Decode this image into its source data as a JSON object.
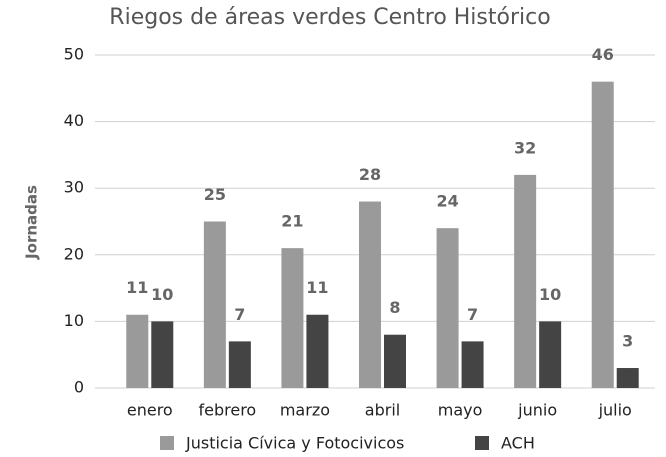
{
  "chart_data": {
    "type": "bar",
    "title": "Riegos de áreas verdes Centro Histórico",
    "y_label": "Jornadas",
    "categories": [
      "enero",
      "febrero",
      "marzo",
      "abril",
      "mayo",
      "junio",
      "julio"
    ],
    "series": [
      {
        "name": "Justicia Cívica y Fotocivicos",
        "color": "#9a9a9a",
        "values": [
          11,
          25,
          21,
          28,
          24,
          32,
          46
        ]
      },
      {
        "name": "ACH",
        "color": "#444444",
        "values": [
          10,
          7,
          11,
          8,
          7,
          10,
          3
        ]
      }
    ],
    "ylim": [
      0,
      50
    ],
    "yticks": [
      0,
      10,
      20,
      30,
      40,
      50
    ],
    "grid": true,
    "legend": "bottom",
    "data_labels": true
  }
}
